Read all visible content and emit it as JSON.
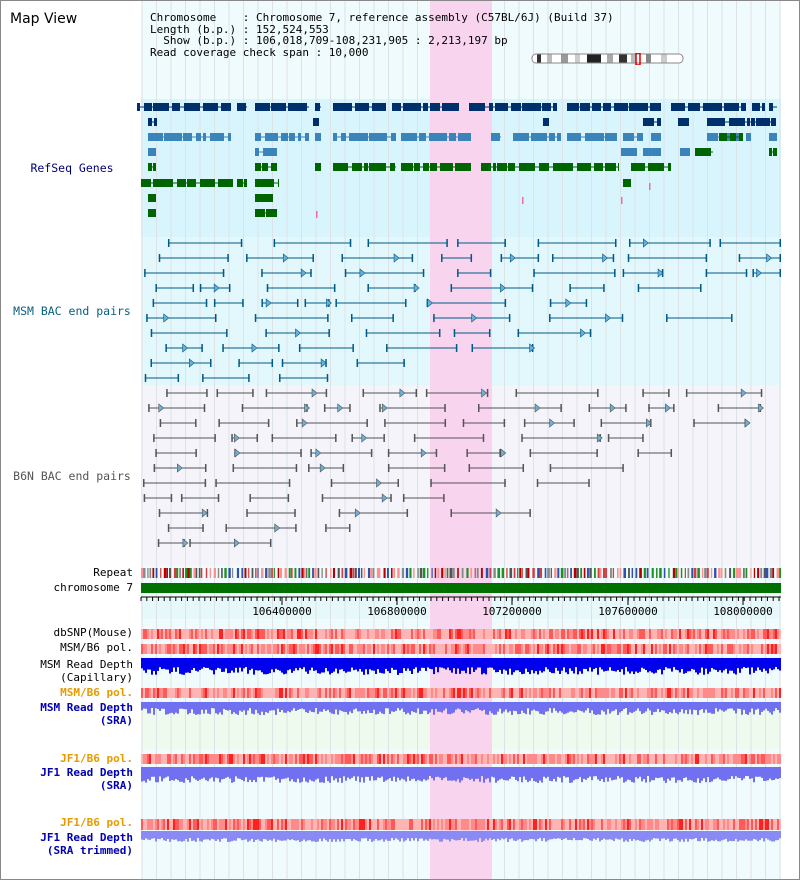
{
  "viewer": {
    "title": "Map View",
    "info": [
      "Chromosome    : Chromosome 7, reference assembly (C57BL/6J) (Build 37)",
      "Length (b.p.) : 152,524,553",
      "  Show (b.p.) : 106,018,709-108,231,905 : 2,213,197 bp",
      "Read coverage check span : 10,000"
    ]
  },
  "colors": {
    "refseq_band": "#d8f4fc",
    "msm_band": "#e2f8fc",
    "b6n_band": "#f4f4fa",
    "highlight": "#f9d4ef",
    "gene_dark": "#00306b",
    "gene_mid": "#3a84ba",
    "gene_green": "#006400",
    "bac_teal": "#005a86",
    "bac_gray": "#555555",
    "chromosome_bar": "#007000",
    "snp_red": "#ff6464",
    "depth_blue": "#0000ee",
    "depth_light": "#7070f0",
    "pol_orange": "#e69a00",
    "label_navy": "#00007a"
  },
  "labels": {
    "refseq": "RefSeq Genes",
    "msm_bac": "MSM BAC end pairs",
    "b6n_bac": "B6N BAC end pairs",
    "repeat": "Repeat",
    "chromosome": "chromosome 7",
    "dbsnp": "dbSNP(Mouse)",
    "msm_b6_pol": "MSM/B6 pol.",
    "msm_depth_cap_1": "MSM Read Depth",
    "msm_depth_cap_2": "(Capillary)",
    "msm_b6_pol_sra": "MSM/B6 pol.",
    "msm_depth_sra_1": "MSM Read Depth",
    "msm_depth_sra_2": "(SRA)",
    "jf1_b6_pol": "JF1/B6 pol.",
    "jf1_depth_sra_1": "JF1 Read Depth",
    "jf1_depth_sra_2": "(SRA)",
    "jf1_b6_pol_trim": "JF1/B6 pol.",
    "jf1_depth_trim_1": "JF1 Read Depth",
    "jf1_depth_trim_2": "(SRA trimmed)"
  },
  "axis": {
    "ticks": [
      "106400000",
      "106800000",
      "107200000",
      "107600000",
      "108000000"
    ]
  }
}
